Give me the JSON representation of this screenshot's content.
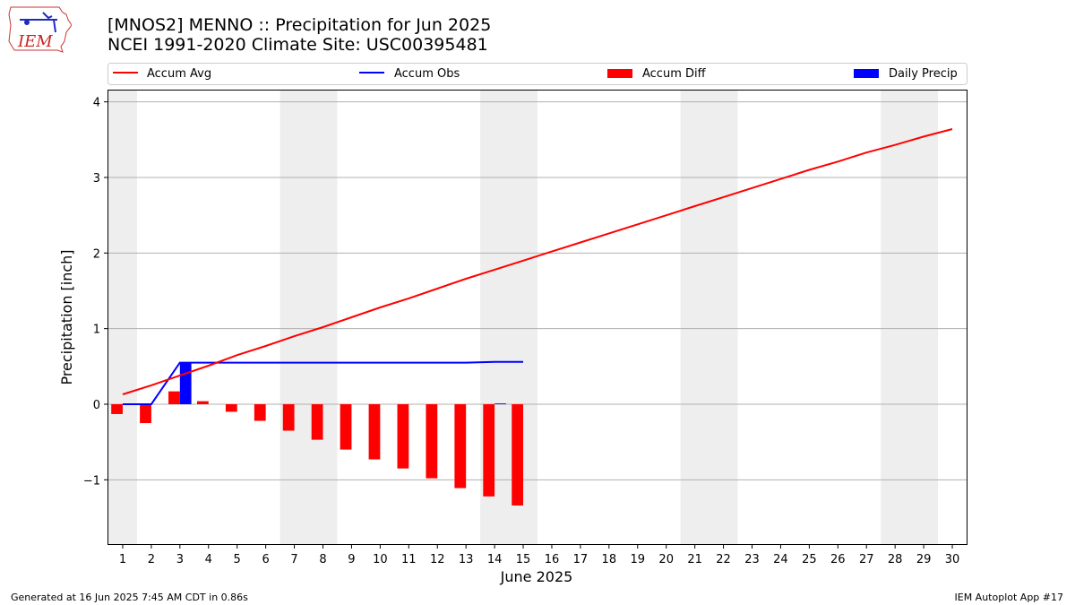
{
  "header": {
    "title_line1": "[MNOS2] MENNO :: Precipitation for Jun 2025",
    "title_line2": "NCEI 1991-2020 Climate Site: USC00395481",
    "logo_text": "IEM"
  },
  "footer": {
    "generated": "Generated at 16 Jun 2025 7:45 AM CDT in 0.86s",
    "app": "IEM Autoplot App #17"
  },
  "colors": {
    "accum_avg": "#ff0000",
    "accum_obs": "#0000ff",
    "accum_diff": "#ff0000",
    "daily_precip": "#0000ff",
    "weekend_shade": "#eeeeee",
    "grid": "#b0b0b0"
  },
  "chart_data": {
    "type": "bar",
    "xlabel": "June 2025",
    "ylabel": "Precipitation [inch]",
    "xlim": [
      0.5,
      30.5
    ],
    "ylim": [
      -1.85,
      4.15
    ],
    "yticks": [
      -1,
      0,
      1,
      2,
      3,
      4
    ],
    "ytick_labels": [
      "−1",
      "0",
      "1",
      "2",
      "3",
      "4"
    ],
    "days": [
      1,
      2,
      3,
      4,
      5,
      6,
      7,
      8,
      9,
      10,
      11,
      12,
      13,
      14,
      15,
      16,
      17,
      18,
      19,
      20,
      21,
      22,
      23,
      24,
      25,
      26,
      27,
      28,
      29,
      30
    ],
    "weekend_spans": [
      [
        0.5,
        1.5
      ],
      [
        6.5,
        8.5
      ],
      [
        13.5,
        15.5
      ],
      [
        20.5,
        22.5
      ],
      [
        27.5,
        29.5
      ]
    ],
    "grid": true,
    "legend_placement": "top, above plot",
    "legend": [
      "Accum Avg",
      "Accum Obs",
      "Accum Diff",
      "Daily Precip"
    ],
    "series": [
      {
        "name": "Accum Avg",
        "kind": "line",
        "x": [
          1,
          2,
          3,
          4,
          5,
          6,
          7,
          8,
          9,
          10,
          11,
          12,
          13,
          14,
          15,
          16,
          17,
          18,
          19,
          20,
          21,
          22,
          23,
          24,
          25,
          26,
          27,
          28,
          29,
          30
        ],
        "values": [
          0.13,
          0.25,
          0.38,
          0.51,
          0.65,
          0.77,
          0.9,
          1.02,
          1.15,
          1.28,
          1.4,
          1.53,
          1.66,
          1.78,
          1.9,
          2.02,
          2.14,
          2.26,
          2.38,
          2.5,
          2.62,
          2.74,
          2.86,
          2.98,
          3.1,
          3.21,
          3.33,
          3.43,
          3.54,
          3.64
        ]
      },
      {
        "name": "Accum Obs",
        "kind": "line",
        "x": [
          1,
          2,
          3,
          4,
          5,
          6,
          7,
          8,
          9,
          10,
          11,
          12,
          13,
          14,
          15
        ],
        "values": [
          0.0,
          0.0,
          0.55,
          0.55,
          0.55,
          0.55,
          0.55,
          0.55,
          0.55,
          0.55,
          0.55,
          0.55,
          0.55,
          0.56,
          0.56
        ]
      },
      {
        "name": "Accum Diff",
        "kind": "bar",
        "x": [
          1,
          2,
          3,
          4,
          5,
          6,
          7,
          8,
          9,
          10,
          11,
          12,
          13,
          14,
          15
        ],
        "values": [
          -0.13,
          -0.25,
          0.17,
          0.04,
          -0.1,
          -0.22,
          -0.35,
          -0.47,
          -0.6,
          -0.73,
          -0.85,
          -0.98,
          -1.11,
          -1.22,
          -1.34
        ]
      },
      {
        "name": "Daily Precip",
        "kind": "bar",
        "x": [
          1,
          2,
          3,
          4,
          5,
          6,
          7,
          8,
          9,
          10,
          11,
          12,
          13,
          14,
          15
        ],
        "values": [
          0,
          0,
          0.55,
          0,
          0,
          0,
          0,
          0,
          0,
          0,
          0,
          0,
          0,
          0.01,
          0
        ]
      }
    ]
  }
}
